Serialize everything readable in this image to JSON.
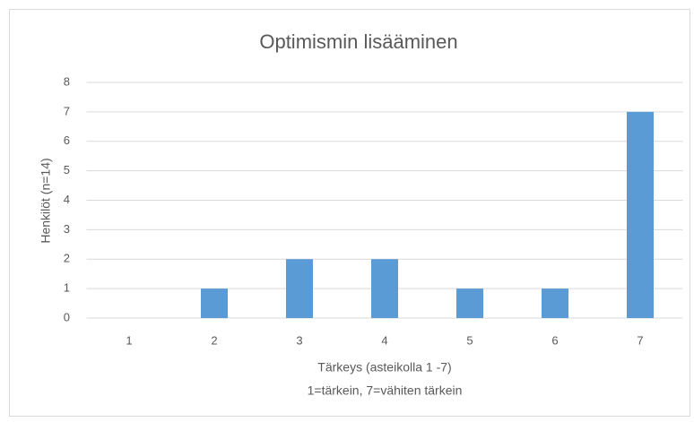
{
  "chart_data": {
    "type": "bar",
    "title": "Optimismin lisääminen",
    "ylabel": "Henkilöt (n=14)",
    "xlabel": [
      "Tärkeys (asteikolla 1  -7)",
      "1=tärkein, 7=vähiten tärkein"
    ],
    "categories": [
      "1",
      "2",
      "3",
      "4",
      "5",
      "6",
      "7"
    ],
    "values": [
      0,
      1,
      2,
      2,
      1,
      1,
      7
    ],
    "color": "#5b9bd5",
    "ylim": [
      0,
      8
    ],
    "yticks": [
      0,
      1,
      2,
      3,
      4,
      5,
      6,
      7,
      8
    ],
    "grid": true
  }
}
